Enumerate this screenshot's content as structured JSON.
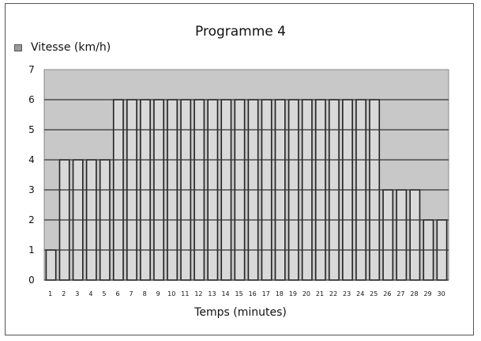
{
  "chart_data": {
    "type": "bar",
    "title": "Programme 4",
    "xlabel": "Temps (minutes)",
    "ylabel": "",
    "legend": "Vitesse (km/h)",
    "legend_position": "top-left",
    "categories": [
      "1",
      "2",
      "3",
      "4",
      "5",
      "6",
      "7",
      "8",
      "9",
      "10",
      "11",
      "12",
      "13",
      "14",
      "15",
      "16",
      "17",
      "18",
      "19",
      "20",
      "21",
      "22",
      "23",
      "24",
      "25",
      "26",
      "27",
      "28",
      "29",
      "30"
    ],
    "series": [
      {
        "name": "Vitesse (km/h)",
        "values": [
          1,
          4,
          4,
          4,
          4,
          6,
          6,
          6,
          6,
          6,
          6,
          6,
          6,
          6,
          6,
          6,
          6,
          6,
          6,
          6,
          6,
          6,
          6,
          6,
          6,
          3,
          3,
          3,
          2,
          2
        ]
      }
    ],
    "ylim": [
      0,
      7
    ],
    "yticks": [
      0,
      1,
      2,
      3,
      4,
      5,
      6,
      7
    ],
    "grid": true,
    "colors": {
      "plot_background": "#c8c8c8",
      "bar_fill": "#d9d9d9",
      "bar_stroke": "#222222",
      "gridline": "#333333"
    }
  }
}
